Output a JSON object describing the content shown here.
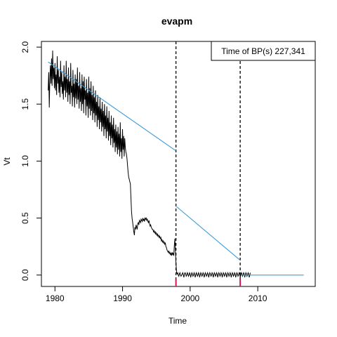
{
  "chart_data": {
    "type": "line",
    "title": "evapm",
    "xlabel": "Time",
    "ylabel": "Vt",
    "xlim": [
      1978.0,
      2018.5
    ],
    "ylim": [
      -0.1,
      2.05
    ],
    "x_ticks": [
      1980,
      1990,
      2000,
      2010
    ],
    "y_ticks": [
      0.0,
      0.5,
      1.0,
      1.5,
      2.0
    ],
    "x_tick_labels": [
      "1980",
      "1990",
      "2000",
      "2010"
    ],
    "y_tick_labels": [
      "0.0",
      "0.5",
      "1.0",
      "1.5",
      "2.0"
    ],
    "legend_placement": "top-right",
    "legend_text": "Time of BP(s) 227,341",
    "breakpoints_x": [
      1997.9,
      2007.4
    ],
    "breakpoint_labels": [
      "227",
      "341"
    ],
    "colors": {
      "data": "#000000",
      "trend": "#3b9bd6",
      "breakpoint": "#000000",
      "ci": "#e0105a"
    },
    "series": [
      {
        "style": "data",
        "x_start": 1979.0,
        "step": 0.0833,
        "values": [
          1.62,
          1.78,
          1.47,
          1.72,
          1.84,
          1.68,
          1.9,
          1.66,
          1.97,
          1.72,
          1.82,
          1.64,
          1.86,
          1.62,
          1.76,
          1.58,
          1.92,
          1.68,
          1.8,
          1.6,
          1.74,
          1.56,
          1.88,
          1.65,
          1.78,
          1.59,
          1.7,
          1.54,
          1.84,
          1.62,
          1.74,
          1.56,
          1.88,
          1.6,
          1.72,
          1.52,
          1.82,
          1.58,
          1.7,
          1.5,
          1.86,
          1.6,
          1.66,
          1.48,
          1.8,
          1.56,
          1.68,
          1.47,
          1.76,
          1.55,
          1.72,
          1.5,
          1.82,
          1.54,
          1.66,
          1.46,
          1.78,
          1.52,
          1.64,
          1.44,
          1.76,
          1.5,
          1.7,
          1.42,
          1.74,
          1.54,
          1.62,
          1.4,
          1.72,
          1.48,
          1.6,
          1.38,
          1.74,
          1.46,
          1.64,
          1.4,
          1.7,
          1.44,
          1.58,
          1.36,
          1.66,
          1.42,
          1.56,
          1.34,
          1.62,
          1.4,
          1.52,
          1.3,
          1.58,
          1.36,
          1.48,
          1.28,
          1.56,
          1.34,
          1.46,
          1.26,
          1.52,
          1.3,
          1.44,
          1.22,
          1.5,
          1.28,
          1.4,
          1.2,
          1.48,
          1.26,
          1.38,
          1.18,
          1.44,
          1.22,
          1.34,
          1.14,
          1.4,
          1.2,
          1.32,
          1.12,
          1.38,
          1.16,
          1.28,
          1.08,
          1.32,
          1.12,
          1.26,
          1.06,
          1.3,
          1.1,
          1.24,
          1.04,
          1.34,
          1.08,
          1.2,
          1.02,
          1.28,
          1.1,
          1.22,
          1.04,
          1.2,
          1.12,
          1.08,
          1.06,
          1.02,
          0.96,
          0.9,
          0.86,
          0.84,
          0.82,
          0.8,
          0.68,
          0.56,
          0.5,
          0.46,
          0.42,
          0.38,
          0.35,
          0.42,
          0.4,
          0.44,
          0.42,
          0.4,
          0.45,
          0.46,
          0.44,
          0.48,
          0.47,
          0.46,
          0.49,
          0.48,
          0.47,
          0.5,
          0.48,
          0.49,
          0.47,
          0.5,
          0.49,
          0.5,
          0.48,
          0.49,
          0.47,
          0.46,
          0.48,
          0.45,
          0.43,
          0.44,
          0.42,
          0.41,
          0.4,
          0.4,
          0.38,
          0.39,
          0.37,
          0.38,
          0.36,
          0.37,
          0.35,
          0.36,
          0.34,
          0.35,
          0.33,
          0.34,
          0.32,
          0.33,
          0.3,
          0.31,
          0.29,
          0.3,
          0.28,
          0.29,
          0.27,
          0.28,
          0.25,
          0.24,
          0.22,
          0.21,
          0.2,
          0.21,
          0.19,
          0.2,
          0.18,
          0.19,
          0.17,
          0.2,
          0.18,
          0.19,
          0.17,
          0.26,
          0.32,
          0.2,
          0.1,
          0.02,
          0.01,
          0.02,
          0.0,
          -0.01,
          0.01,
          0.02,
          0.0,
          -0.01,
          0.0,
          0.01,
          0.02,
          0.0,
          -0.02,
          0.01,
          0.02,
          0.01,
          -0.01,
          0.0,
          0.02,
          0.01,
          -0.01,
          0.0,
          0.02,
          0.01,
          -0.02,
          0.0,
          0.02,
          0.01,
          -0.01,
          0.0,
          0.02,
          0.01,
          -0.02,
          0.0,
          0.02,
          0.01,
          -0.01,
          0.0,
          0.02,
          0.01,
          -0.02,
          0.0,
          0.02,
          0.01,
          -0.01,
          0.0,
          0.02,
          0.01,
          -0.02,
          0.0,
          0.02,
          0.01,
          -0.01,
          0.0,
          0.02,
          0.01,
          -0.02,
          0.0,
          0.02,
          0.01,
          -0.01,
          0.0,
          0.02,
          0.01,
          -0.02,
          0.0,
          0.02,
          0.01,
          -0.01,
          0.0,
          0.02,
          0.01,
          -0.02,
          0.0,
          0.02,
          0.01,
          -0.01,
          0.0,
          0.02,
          0.01,
          -0.02,
          0.0,
          0.02,
          0.01,
          -0.01,
          0.0,
          0.02,
          0.01,
          -0.02,
          0.0,
          0.02,
          0.01,
          -0.01,
          0.0,
          0.02,
          0.01,
          -0.02,
          0.0,
          0.02,
          0.01,
          -0.01,
          0.0,
          0.02,
          0.01,
          -0.02,
          0.0,
          0.02,
          0.01,
          -0.01,
          0.0,
          0.02,
          0.01,
          -0.02,
          0.0,
          0.02,
          0.01,
          -0.01,
          0.0,
          0.02,
          0.01,
          -0.02,
          0.0,
          0.02,
          0.01,
          -0.01,
          0.0,
          0.02,
          0.01,
          -0.02,
          0.0,
          0.02
        ]
      },
      {
        "style": "trend",
        "x": [
          1979.0,
          1997.9
        ],
        "y": [
          1.87,
          1.09
        ]
      },
      {
        "style": "trend",
        "x": [
          1998.0,
          2007.4
        ],
        "y": [
          0.6,
          0.13
        ]
      },
      {
        "style": "trend",
        "x": [
          2007.5,
          2016.8
        ],
        "y": [
          0.0,
          0.0
        ]
      }
    ]
  }
}
